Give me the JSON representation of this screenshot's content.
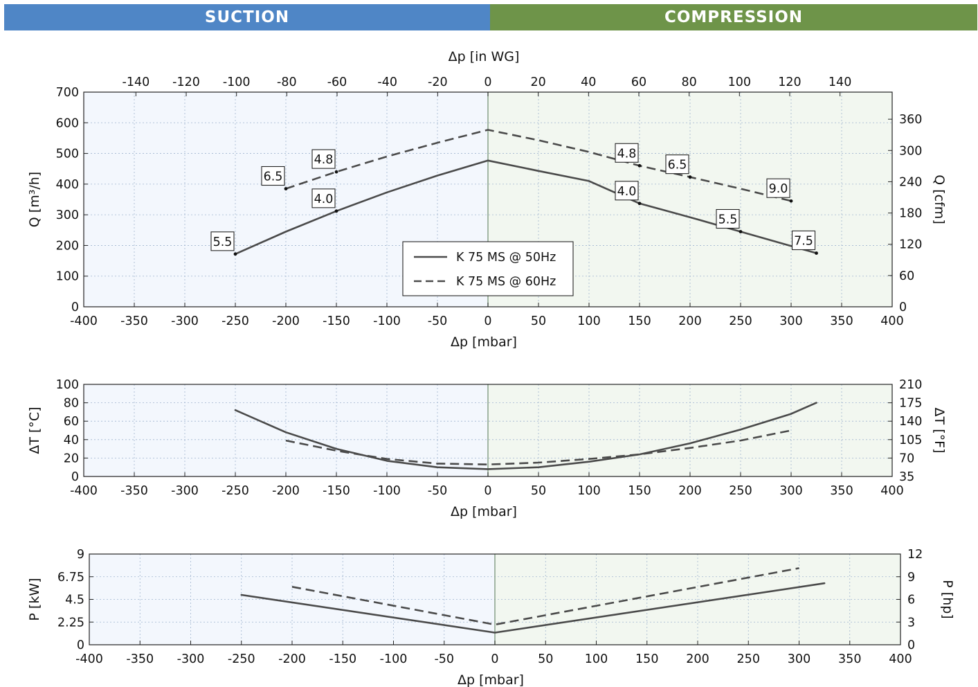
{
  "header": {
    "suction": "SUCTION",
    "compression": "COMPRESSION",
    "suction_color": "#4f86c6",
    "compression_color": "#6e9449"
  },
  "colors": {
    "suction_bg": "#f3f7fd",
    "compression_bg": "#f2f7f0",
    "grid": "#9fb4cf",
    "line": "#4a4a4a",
    "zero_line": "#7f9a80"
  },
  "legend": {
    "items": [
      {
        "label": "K 75 MS @ 50Hz",
        "style": "solid"
      },
      {
        "label": "K 75 MS @ 60Hz",
        "style": "dashed"
      }
    ]
  },
  "chart_data": [
    {
      "type": "line",
      "title": "",
      "xlabel": "Δp [mbar]",
      "x2label": "Δp [in WG]",
      "ylabel": "Q [m³/h]",
      "y2label": "Q [cfm]",
      "xlim": [
        -400,
        400
      ],
      "xticks": [
        -400,
        -350,
        -300,
        -250,
        -200,
        -150,
        -100,
        -50,
        0,
        50,
        100,
        150,
        200,
        250,
        300,
        350,
        400
      ],
      "x2ticks": [
        -140,
        -120,
        -100,
        -80,
        -60,
        -40,
        -20,
        0,
        20,
        40,
        60,
        80,
        100,
        120,
        140
      ],
      "ylim": [
        0,
        700
      ],
      "yticks": [
        0,
        100,
        200,
        300,
        400,
        500,
        600,
        700
      ],
      "y2lim": [
        0,
        412
      ],
      "y2ticks": [
        0,
        60,
        120,
        180,
        240,
        300,
        360
      ],
      "grid": true,
      "legend_position": "center-bottom",
      "series": [
        {
          "name": "K 75 MS @ 50Hz",
          "style": "solid",
          "x": [
            -250,
            -200,
            -150,
            -100,
            -50,
            0,
            50,
            100,
            150,
            200,
            250,
            300,
            325
          ],
          "y": [
            172,
            245,
            312,
            373,
            428,
            477,
            443,
            410,
            337,
            292,
            245,
            198,
            175
          ]
        },
        {
          "name": "K 75 MS @ 60Hz",
          "style": "dashed",
          "x": [
            -200,
            -150,
            -100,
            -50,
            0,
            50,
            100,
            150,
            200,
            250,
            300
          ],
          "y": [
            385,
            440,
            490,
            535,
            577,
            543,
            505,
            460,
            423,
            385,
            345
          ]
        }
      ],
      "point_labels": [
        {
          "x": -250,
          "y": 172,
          "text": "5.5",
          "series": 0
        },
        {
          "x": -150,
          "y": 312,
          "text": "4.0",
          "series": 0
        },
        {
          "x": 150,
          "y": 337,
          "text": "4.0",
          "series": 0
        },
        {
          "x": 250,
          "y": 245,
          "text": "5.5",
          "series": 0
        },
        {
          "x": 325,
          "y": 175,
          "text": "7.5",
          "series": 0
        },
        {
          "x": -200,
          "y": 385,
          "text": "6.5",
          "series": 1
        },
        {
          "x": -150,
          "y": 440,
          "text": "4.8",
          "series": 1
        },
        {
          "x": 150,
          "y": 460,
          "text": "4.8",
          "series": 1
        },
        {
          "x": 200,
          "y": 423,
          "text": "6.5",
          "series": 1
        },
        {
          "x": 300,
          "y": 345,
          "text": "9.0",
          "series": 1
        }
      ]
    },
    {
      "type": "line",
      "title": "",
      "xlabel": "Δp [mbar]",
      "ylabel": "ΔT [°C]",
      "y2label": "ΔT [°F]",
      "xlim": [
        -400,
        400
      ],
      "xticks": [
        -400,
        -350,
        -300,
        -250,
        -200,
        -150,
        -100,
        -50,
        0,
        50,
        100,
        150,
        200,
        250,
        300,
        350,
        400
      ],
      "ylim": [
        0,
        100
      ],
      "yticks": [
        0,
        20,
        40,
        60,
        80,
        100
      ],
      "y2ticks": [
        35,
        70,
        105,
        140,
        175,
        210
      ],
      "grid": true,
      "series": [
        {
          "name": "K 75 MS @ 50Hz",
          "style": "solid",
          "x": [
            -250,
            -200,
            -150,
            -100,
            -50,
            0,
            50,
            100,
            150,
            200,
            250,
            300,
            325
          ],
          "y": [
            72,
            48,
            30,
            17,
            10,
            8,
            10,
            16,
            24,
            36,
            51,
            68,
            80
          ]
        },
        {
          "name": "K 75 MS @ 60Hz",
          "style": "dashed",
          "x": [
            -200,
            -150,
            -100,
            -50,
            0,
            50,
            100,
            150,
            200,
            250,
            300
          ],
          "y": [
            39,
            28,
            19,
            14,
            13,
            15,
            19,
            24,
            31,
            39,
            50
          ]
        }
      ]
    },
    {
      "type": "line",
      "title": "",
      "xlabel": "Δp [mbar]",
      "ylabel": "P [kW]",
      "y2label": "P [hp]",
      "xlim": [
        -400,
        400
      ],
      "xticks": [
        -400,
        -350,
        -300,
        -250,
        -200,
        -150,
        -100,
        -50,
        0,
        50,
        100,
        150,
        200,
        250,
        300,
        350,
        400
      ],
      "ylim": [
        0,
        9
      ],
      "yticks": [
        0,
        2.25,
        4.5,
        6.75,
        9
      ],
      "y2ticks": [
        0,
        3,
        6,
        9,
        12
      ],
      "grid": true,
      "series": [
        {
          "name": "K 75 MS @ 50Hz",
          "style": "solid",
          "x": [
            -250,
            0,
            325
          ],
          "y": [
            4.95,
            1.2,
            6.1
          ]
        },
        {
          "name": "K 75 MS @ 60Hz",
          "style": "dashed",
          "x": [
            -200,
            0,
            300
          ],
          "y": [
            5.75,
            2.0,
            7.6
          ]
        }
      ]
    }
  ]
}
